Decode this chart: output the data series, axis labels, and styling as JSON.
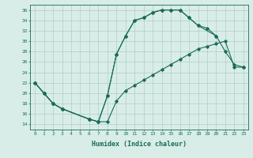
{
  "xlabel": "Humidex (Indice chaleur)",
  "background_color": "#d9ede8",
  "grid_color": "#b0ccc5",
  "line_color": "#1a6b5a",
  "xlim": [
    -0.5,
    23.5
  ],
  "ylim": [
    13,
    37
  ],
  "yticks": [
    14,
    16,
    18,
    20,
    22,
    24,
    26,
    28,
    30,
    32,
    34,
    36
  ],
  "xticks": [
    0,
    1,
    2,
    3,
    4,
    5,
    6,
    7,
    8,
    9,
    10,
    11,
    12,
    13,
    14,
    15,
    16,
    17,
    18,
    19,
    20,
    21,
    22,
    23
  ],
  "curve_top_x": [
    0,
    1,
    2,
    3,
    6,
    7,
    8,
    9,
    10,
    11,
    12,
    13,
    14,
    15,
    16,
    17,
    18,
    20,
    21,
    22,
    23
  ],
  "curve_top_y": [
    22,
    20,
    18,
    17,
    15,
    14.5,
    19.5,
    27.5,
    31,
    34,
    34.5,
    35.5,
    36,
    36,
    36,
    34.5,
    33,
    31,
    28,
    25.5,
    25
  ],
  "curve_bot_x": [
    0,
    1,
    2,
    3,
    6,
    7,
    8,
    9,
    10,
    11,
    12,
    13,
    14,
    15,
    16,
    17,
    18,
    19,
    20,
    21,
    22,
    23
  ],
  "curve_bot_y": [
    22,
    20,
    18,
    17,
    15,
    14.5,
    14.5,
    18.5,
    20.5,
    21.5,
    22.5,
    23.5,
    24.5,
    25.5,
    26.5,
    27.5,
    28.5,
    29,
    29.5,
    30,
    25,
    25
  ],
  "curve_mid_x": [
    0,
    1,
    2,
    3,
    6,
    7,
    8,
    9,
    10,
    11,
    12,
    13,
    14,
    15,
    16,
    17,
    18,
    19,
    20
  ],
  "curve_mid_y": [
    22,
    20,
    18,
    17,
    15,
    14.5,
    19.5,
    27.5,
    31,
    34,
    34.5,
    35.5,
    36,
    36,
    36,
    34.5,
    33,
    32.5,
    31
  ]
}
